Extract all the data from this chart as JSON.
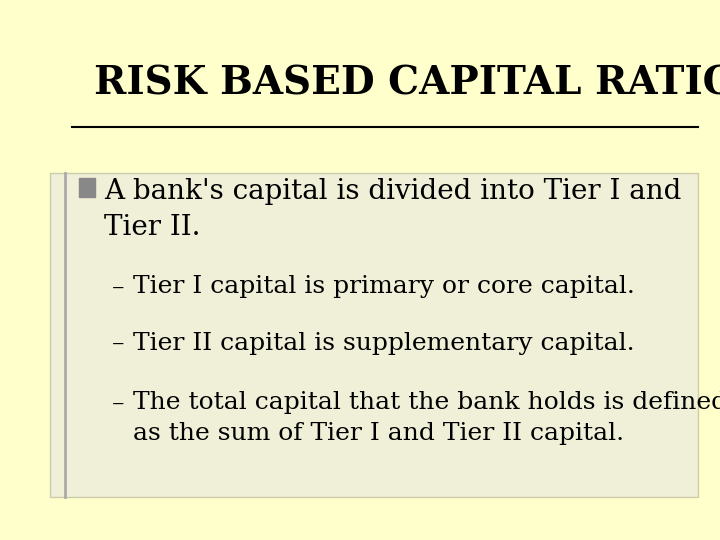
{
  "title": "RISK BASED CAPITAL RATIOS",
  "background_color": "#FFFFCC",
  "content_box_color": "#F0EFD8",
  "title_color": "#000000",
  "text_color": "#000000",
  "bullet_main": "A bank's capital is divided into Tier I and\nTier II.",
  "sub_bullets": [
    "Tier I capital is primary or core capital.",
    "Tier II capital is supplementary capital.",
    "The total capital that the bank holds is defined\nas the sum of Tier I and Tier II capital."
  ],
  "title_fontsize": 28,
  "main_bullet_fontsize": 20,
  "sub_bullet_fontsize": 18
}
